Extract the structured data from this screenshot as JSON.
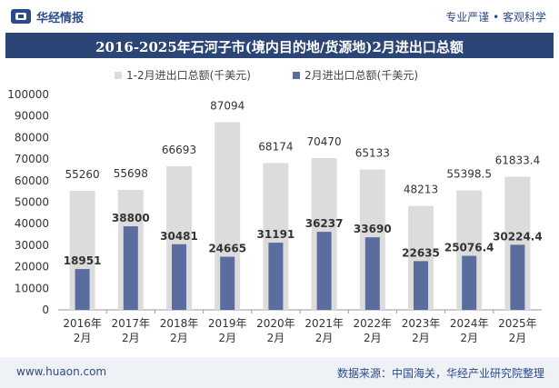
{
  "header": {
    "brand": "华经情报",
    "slogan": "专业严谨 • 客观科学",
    "title": "2016-2025年石河子市(境内目的地/货源地)2月进出口总额"
  },
  "legend": [
    {
      "label": "1-2月进出口总额(千美元)",
      "color": "#dcdcdc"
    },
    {
      "label": "2月进出口总额(千美元)",
      "color": "#5b6d9e"
    }
  ],
  "footer": {
    "url": "www.huaon.com",
    "source": "数据来源：中国海关，华经产业研究院整理"
  },
  "chart_data": {
    "type": "bar",
    "categories": [
      "2016年\n2月",
      "2017年\n2月",
      "2018年\n2月",
      "2019年\n2月",
      "2020年\n2月",
      "2021年\n2月",
      "2022年\n2月",
      "2023年\n2月",
      "2024年\n2月",
      "2025年\n2月"
    ],
    "series": [
      {
        "name": "1-2月进出口总额(千美元)",
        "values": [
          55260,
          55698,
          66693,
          87094,
          68174,
          70470,
          65133,
          48213,
          55398.5,
          61833.4
        ],
        "labels": [
          "55260",
          "55698",
          "66693",
          "87094",
          "68174",
          "70470",
          "65133",
          "48213",
          "55398.5",
          "61833.4"
        ],
        "color": "#dcdcdc"
      },
      {
        "name": "2月进出口总额(千美元)",
        "values": [
          18951,
          38800,
          30481,
          24665,
          31191,
          36237,
          33690,
          22635,
          25076.4,
          30224.4
        ],
        "labels": [
          "18951",
          "38800",
          "30481",
          "24665",
          "31191",
          "36237",
          "33690",
          "22635",
          "25076.4",
          "30224.4"
        ],
        "color": "#5b6d9e"
      }
    ],
    "ylim": [
      0,
      100000
    ],
    "yticks": [
      "0",
      "10000",
      "20000",
      "30000",
      "40000",
      "50000",
      "60000",
      "70000",
      "80000",
      "90000",
      "100000"
    ],
    "grid": false,
    "legend_position": "top"
  }
}
